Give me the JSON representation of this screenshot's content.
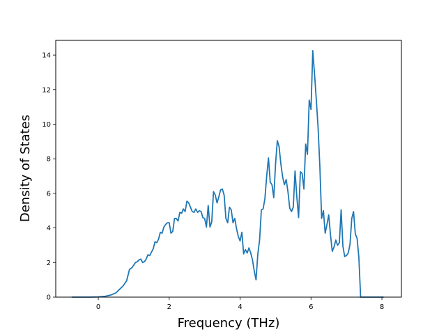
{
  "chart_data": {
    "type": "line",
    "title": "",
    "xlabel": "Frequency (THz)",
    "ylabel": "Density of States",
    "xlim": [
      -1.2,
      8.55
    ],
    "ylim": [
      0,
      14.85
    ],
    "xticks": [
      0,
      2,
      4,
      6,
      8
    ],
    "yticks": [
      0,
      2,
      4,
      6,
      8,
      10,
      12,
      14
    ],
    "grid": false,
    "legend": "none",
    "series": [
      {
        "color": "#1f77b4",
        "x": [
          -0.75,
          -0.5,
          -0.2,
          0,
          0.2,
          0.35,
          0.5,
          0.6,
          0.7,
          0.8,
          0.88,
          0.95,
          1.0,
          1.05,
          1.1,
          1.15,
          1.2,
          1.25,
          1.3,
          1.35,
          1.4,
          1.45,
          1.5,
          1.55,
          1.6,
          1.65,
          1.7,
          1.75,
          1.8,
          1.85,
          1.9,
          1.95,
          2.0,
          2.05,
          2.1,
          2.15,
          2.2,
          2.25,
          2.3,
          2.35,
          2.4,
          2.45,
          2.5,
          2.55,
          2.6,
          2.65,
          2.7,
          2.75,
          2.8,
          2.85,
          2.9,
          2.95,
          3.0,
          3.05,
          3.1,
          3.15,
          3.2,
          3.25,
          3.3,
          3.35,
          3.4,
          3.45,
          3.5,
          3.55,
          3.6,
          3.65,
          3.7,
          3.75,
          3.8,
          3.85,
          3.9,
          3.95,
          4.0,
          4.05,
          4.1,
          4.15,
          4.2,
          4.25,
          4.3,
          4.35,
          4.4,
          4.45,
          4.5,
          4.55,
          4.6,
          4.65,
          4.7,
          4.75,
          4.8,
          4.85,
          4.9,
          4.95,
          5.0,
          5.05,
          5.1,
          5.15,
          5.2,
          5.25,
          5.3,
          5.35,
          5.4,
          5.45,
          5.5,
          5.55,
          5.6,
          5.65,
          5.7,
          5.75,
          5.8,
          5.85,
          5.9,
          5.95,
          6.0,
          6.05,
          6.1,
          6.15,
          6.2,
          6.25,
          6.3,
          6.35,
          6.4,
          6.45,
          6.5,
          6.55,
          6.6,
          6.65,
          6.7,
          6.75,
          6.8,
          6.85,
          6.9,
          6.95,
          7.0,
          7.05,
          7.1,
          7.15,
          7.2,
          7.25,
          7.3,
          7.35,
          7.4,
          7.5,
          7.7,
          7.9,
          8.05
        ],
        "y": [
          0,
          0,
          0,
          0.01,
          0.05,
          0.12,
          0.25,
          0.45,
          0.65,
          0.95,
          1.6,
          1.7,
          1.85,
          2.0,
          2.05,
          2.15,
          2.2,
          2.0,
          2.05,
          2.2,
          2.45,
          2.4,
          2.6,
          2.8,
          3.2,
          3.15,
          3.35,
          3.75,
          3.7,
          4.05,
          4.2,
          4.3,
          4.3,
          3.7,
          3.8,
          4.55,
          4.55,
          4.4,
          4.9,
          4.85,
          5.1,
          4.95,
          5.55,
          5.45,
          5.2,
          4.95,
          4.9,
          5.1,
          4.9,
          5.0,
          4.95,
          4.6,
          4.55,
          4.05,
          5.3,
          4.05,
          4.35,
          6.1,
          5.9,
          5.45,
          5.8,
          6.2,
          6.25,
          5.9,
          4.55,
          4.3,
          5.2,
          5.05,
          4.3,
          4.55,
          3.95,
          3.5,
          3.25,
          3.75,
          2.5,
          2.75,
          2.55,
          2.85,
          2.55,
          2.15,
          1.5,
          1.0,
          2.5,
          3.3,
          5.05,
          5.1,
          5.7,
          7.0,
          8.05,
          6.65,
          6.5,
          5.75,
          7.7,
          9.05,
          8.7,
          7.7,
          6.95,
          6.5,
          6.8,
          6.1,
          5.15,
          4.95,
          5.2,
          7.3,
          5.8,
          4.6,
          7.25,
          7.15,
          6.25,
          8.85,
          8.25,
          11.4,
          10.85,
          14.25,
          12.9,
          11.4,
          9.8,
          7.55,
          4.55,
          5.0,
          3.7,
          4.2,
          4.75,
          3.6,
          2.65,
          2.9,
          3.3,
          3.0,
          3.15,
          5.05,
          2.95,
          2.35,
          2.4,
          2.55,
          3.05,
          4.55,
          4.95,
          3.65,
          3.4,
          2.3,
          0,
          0,
          0,
          0,
          0
        ]
      }
    ]
  }
}
